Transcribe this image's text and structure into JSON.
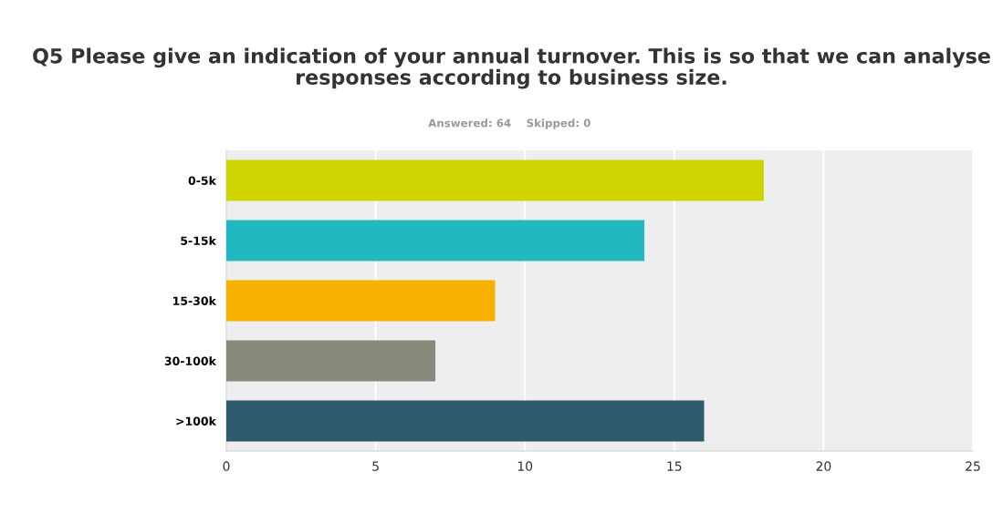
{
  "chart_data": {
    "type": "bar",
    "orientation": "horizontal",
    "title": "Q5 Please give an indication of your annual turnover. This is so that we can analyse responses according to business size.",
    "subtitle": "Answered: 64    Skipped: 0",
    "categories": [
      "0-5k",
      "5-15k",
      "15-30k",
      "30-100k",
      ">100k"
    ],
    "values": [
      18,
      14,
      9,
      7,
      16
    ],
    "colors": [
      "#cdd400",
      "#21b9bf",
      "#f7b100",
      "#87897a",
      "#2d5b6b"
    ],
    "xlim": [
      0,
      25
    ],
    "xticks": [
      0,
      5,
      10,
      15,
      20,
      25
    ],
    "grid": "x"
  }
}
